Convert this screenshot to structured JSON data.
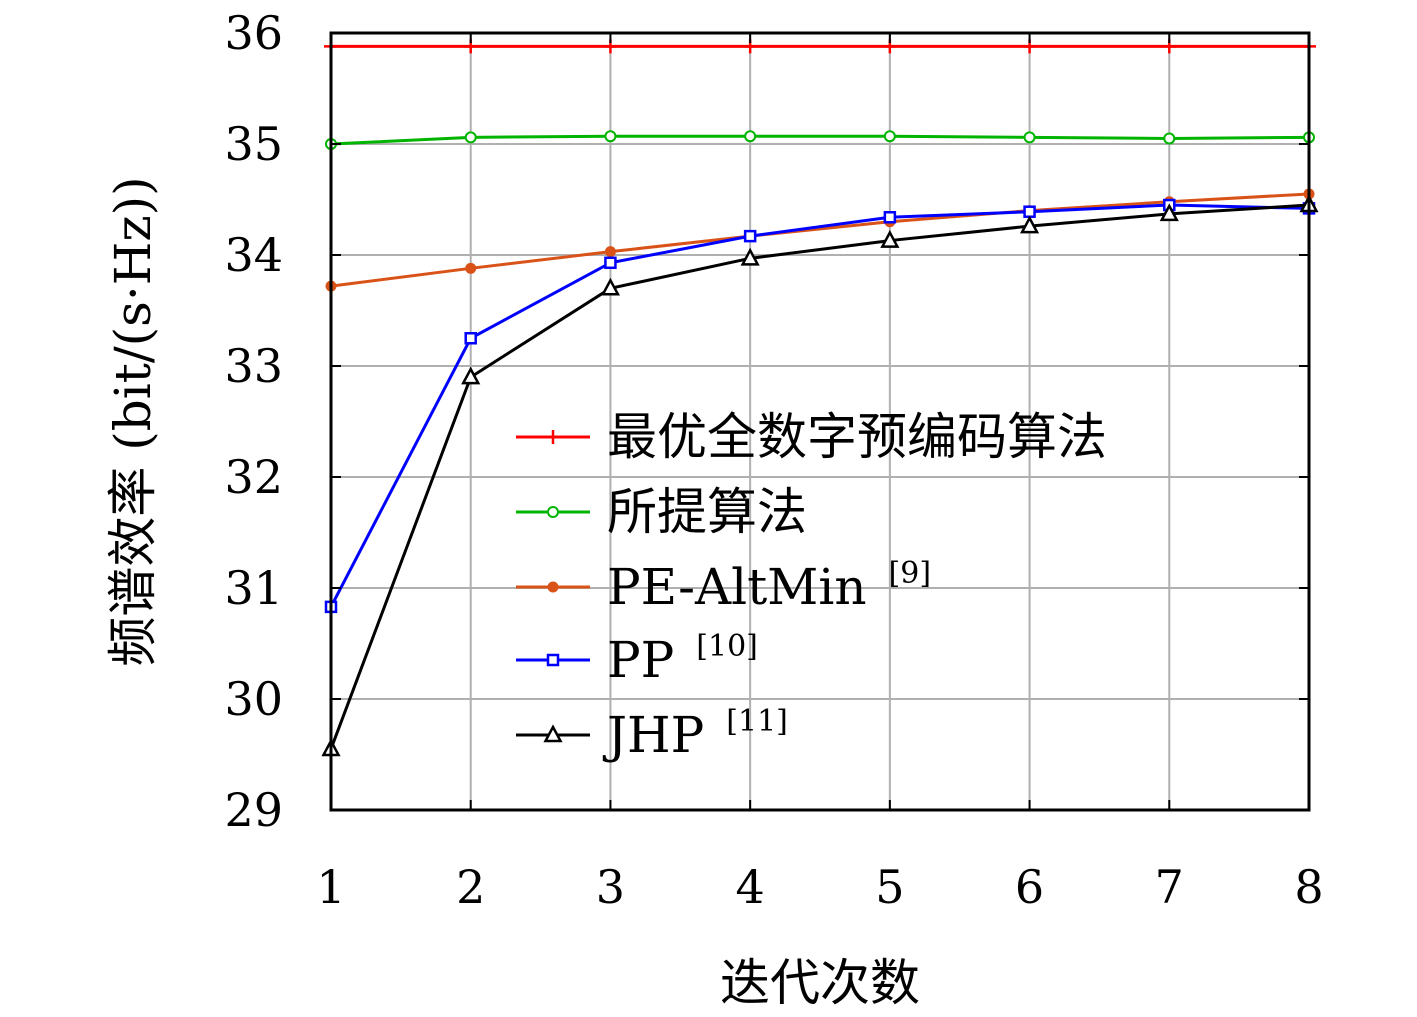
{
  "chart_data": {
    "type": "line",
    "title": "",
    "xlabel": "迭代次数",
    "ylabel": "频谱效率 (bit/(s·Hz))",
    "xlim": [
      1,
      8
    ],
    "ylim": [
      29,
      36
    ],
    "xticks": [
      1,
      2,
      3,
      4,
      5,
      6,
      7,
      8
    ],
    "yticks": [
      29,
      30,
      31,
      32,
      33,
      34,
      35,
      36
    ],
    "grid": true,
    "legend_position": "lower-right",
    "x": [
      1,
      2,
      3,
      4,
      5,
      6,
      7,
      8
    ],
    "series": [
      {
        "name": "最优全数字预编码算法",
        "ref": "",
        "color": "#ff0000",
        "marker": "plus",
        "values": [
          35.88,
          35.88,
          35.88,
          35.88,
          35.88,
          35.88,
          35.88,
          35.88
        ]
      },
      {
        "name": "所提算法",
        "ref": "",
        "color": "#00b400",
        "marker": "circle",
        "values": [
          35.0,
          35.06,
          35.07,
          35.07,
          35.07,
          35.06,
          35.05,
          35.06
        ]
      },
      {
        "name": "PE-AltMin",
        "ref": "[9]",
        "color": "#d95319",
        "marker": "dot",
        "values": [
          33.72,
          33.88,
          34.03,
          34.17,
          34.3,
          34.4,
          34.48,
          34.55
        ]
      },
      {
        "name": "PP",
        "ref": "[10]",
        "color": "#0000ff",
        "marker": "square",
        "values": [
          30.83,
          33.25,
          33.93,
          34.17,
          34.34,
          34.39,
          34.45,
          34.42
        ]
      },
      {
        "name": "JHP",
        "ref": "[11]",
        "color": "#000000",
        "marker": "triangle",
        "values": [
          29.55,
          32.9,
          33.7,
          33.97,
          34.13,
          34.26,
          34.37,
          34.45
        ]
      }
    ]
  }
}
